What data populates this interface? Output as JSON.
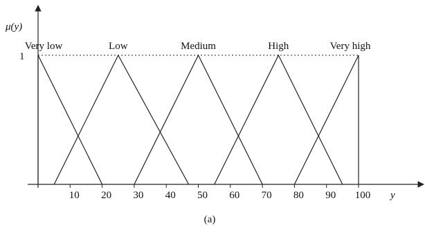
{
  "chart_data": {
    "type": "line",
    "ylabel": "μ(y)",
    "xlabel": "y",
    "caption": "(a)",
    "xlim": [
      0,
      100
    ],
    "ylim": [
      0,
      1
    ],
    "y_tick_label": "1",
    "x_ticks": [
      10,
      20,
      30,
      40,
      50,
      60,
      70,
      80,
      90,
      100
    ],
    "series": [
      {
        "name": "Very low",
        "x": [
          0,
          0,
          20
        ],
        "y": [
          0,
          1,
          0
        ]
      },
      {
        "name": "Low",
        "x": [
          5,
          25,
          47
        ],
        "y": [
          0,
          1,
          0
        ]
      },
      {
        "name": "Medium",
        "x": [
          30,
          50,
          70
        ],
        "y": [
          0,
          1,
          0
        ]
      },
      {
        "name": "High",
        "x": [
          55,
          75,
          95
        ],
        "y": [
          0,
          1,
          0
        ]
      },
      {
        "name": "Very high",
        "x": [
          80,
          100,
          100
        ],
        "y": [
          0,
          1,
          0
        ]
      }
    ]
  }
}
